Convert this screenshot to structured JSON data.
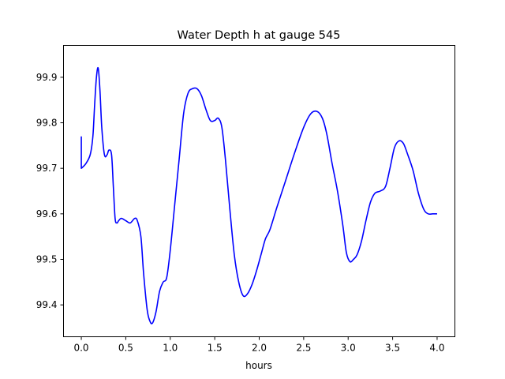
{
  "chart_data": {
    "type": "line",
    "title": "Water Depth h at gauge 545",
    "xlabel": "hours",
    "ylabel": "",
    "xlim": [
      -0.2,
      4.2
    ],
    "ylim": [
      99.33,
      99.97
    ],
    "xticks": [
      0.0,
      0.5,
      1.0,
      1.5,
      2.0,
      2.5,
      3.0,
      3.5,
      4.0
    ],
    "xtick_labels": [
      "0.0",
      "0.5",
      "1.0",
      "1.5",
      "2.0",
      "2.5",
      "3.0",
      "3.5",
      "4.0"
    ],
    "yticks": [
      99.4,
      99.5,
      99.6,
      99.7,
      99.8,
      99.9
    ],
    "ytick_labels": [
      "99.4",
      "99.5",
      "99.6",
      "99.7",
      "99.8",
      "99.9"
    ],
    "grid": false,
    "series": [
      {
        "color": "#0000ff",
        "x": [
          0.0,
          0.0,
          0.05,
          0.1,
          0.13,
          0.15,
          0.17,
          0.19,
          0.21,
          0.23,
          0.26,
          0.29,
          0.31,
          0.34,
          0.36,
          0.38,
          0.4,
          0.42,
          0.45,
          0.5,
          0.55,
          0.6,
          0.63,
          0.67,
          0.7,
          0.74,
          0.77,
          0.8,
          0.84,
          0.88,
          0.92,
          0.96,
          1.0,
          1.05,
          1.1,
          1.15,
          1.2,
          1.25,
          1.3,
          1.35,
          1.4,
          1.45,
          1.5,
          1.54,
          1.58,
          1.62,
          1.67,
          1.72,
          1.77,
          1.82,
          1.87,
          1.92,
          1.97,
          2.02,
          2.07,
          2.12,
          2.2,
          2.3,
          2.4,
          2.5,
          2.58,
          2.65,
          2.71,
          2.76,
          2.82,
          2.88,
          2.94,
          2.98,
          3.02,
          3.06,
          3.1,
          3.15,
          3.2,
          3.25,
          3.3,
          3.36,
          3.42,
          3.47,
          3.52,
          3.57,
          3.62,
          3.67,
          3.73,
          3.79,
          3.85,
          3.9,
          3.95,
          4.0
        ],
        "values": [
          99.77,
          99.7,
          99.71,
          99.73,
          99.77,
          99.84,
          99.9,
          99.92,
          99.87,
          99.79,
          99.73,
          99.73,
          99.74,
          99.73,
          99.66,
          99.59,
          99.58,
          99.585,
          99.59,
          99.585,
          99.58,
          99.59,
          99.585,
          99.55,
          99.47,
          99.39,
          99.365,
          99.36,
          99.385,
          99.43,
          99.45,
          99.46,
          99.52,
          99.62,
          99.72,
          99.82,
          99.865,
          99.875,
          99.875,
          99.86,
          99.83,
          99.805,
          99.805,
          99.81,
          99.79,
          99.72,
          99.61,
          99.51,
          99.45,
          99.42,
          99.425,
          99.445,
          99.475,
          99.51,
          99.545,
          99.565,
          99.615,
          99.675,
          99.735,
          99.79,
          99.82,
          99.825,
          99.81,
          99.775,
          99.71,
          99.65,
          99.575,
          99.515,
          99.495,
          99.5,
          99.51,
          99.54,
          99.585,
          99.625,
          99.645,
          99.65,
          99.66,
          99.7,
          99.745,
          99.76,
          99.755,
          99.73,
          99.695,
          99.645,
          99.61,
          99.6,
          99.6,
          99.6
        ]
      }
    ]
  }
}
